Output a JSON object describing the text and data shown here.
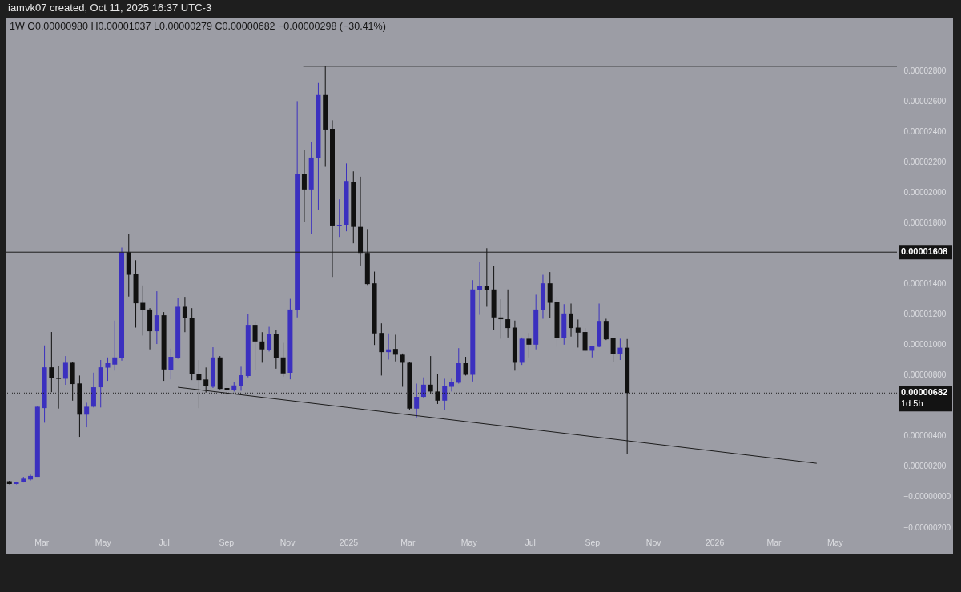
{
  "chart_data": {
    "type": "candlestick",
    "title": "iamvk07 created, Oct 11, 2025 16:37 UTC-3",
    "subtitle": "1W  O0.00000980  H0.00001037  L0.00000279  C0.00000682  −0.00000298 (−30.41%)",
    "x": [
      "2024-01-29",
      "2024-02-05",
      "2024-02-12",
      "2024-02-19",
      "2024-02-26",
      "2024-03-04",
      "2024-03-11",
      "2024-03-18",
      "2024-03-25",
      "2024-04-01",
      "2024-04-08",
      "2024-04-15",
      "2024-04-22",
      "2024-04-29",
      "2024-05-06",
      "2024-05-13",
      "2024-05-20",
      "2024-05-27",
      "2024-06-03",
      "2024-06-10",
      "2024-06-17",
      "2024-06-24",
      "2024-07-01",
      "2024-07-08",
      "2024-07-15",
      "2024-07-22",
      "2024-07-29",
      "2024-08-05",
      "2024-08-12",
      "2024-08-19",
      "2024-08-26",
      "2024-09-02",
      "2024-09-09",
      "2024-09-16",
      "2024-09-23",
      "2024-09-30",
      "2024-10-07",
      "2024-10-14",
      "2024-10-21",
      "2024-10-28",
      "2024-11-04",
      "2024-11-11",
      "2024-11-18",
      "2024-11-25",
      "2024-12-02",
      "2024-12-09",
      "2024-12-16",
      "2024-12-23",
      "2024-12-30",
      "2025-01-06",
      "2025-01-13",
      "2025-01-20",
      "2025-01-27",
      "2025-02-03",
      "2025-02-10",
      "2025-02-17",
      "2025-02-24",
      "2025-03-03",
      "2025-03-10",
      "2025-03-17",
      "2025-03-24",
      "2025-03-31",
      "2025-04-07",
      "2025-04-14",
      "2025-04-21",
      "2025-04-28",
      "2025-05-05",
      "2025-05-12",
      "2025-05-19",
      "2025-05-26",
      "2025-06-02",
      "2025-06-09",
      "2025-06-16",
      "2025-06-23",
      "2025-06-30",
      "2025-07-07",
      "2025-07-14",
      "2025-07-21",
      "2025-07-28",
      "2025-08-04",
      "2025-08-11",
      "2025-08-18",
      "2025-08-25",
      "2025-09-01",
      "2025-09-08",
      "2025-09-15",
      "2025-09-22",
      "2025-09-29",
      "2025-10-06"
    ],
    "ohlc": [
      [
        1.02e-06,
        1.05e-06,
        8.2e-07,
        8.4e-07
      ],
      [
        8.4e-07,
        1e-06,
        8.2e-07,
        9.8e-07
      ],
      [
        9.6e-07,
        1.31e-06,
        9.4e-07,
        1.19e-06
      ],
      [
        1.14e-06,
        1.45e-06,
        1.07e-06,
        1.37e-06
      ],
      [
        1.31e-06,
        5.96e-06,
        1.31e-06,
        5.92e-06
      ],
      [
        5.83e-06,
        9.95e-06,
        4.87e-06,
        8.51e-06
      ],
      [
        8.51e-06,
        1.083e-05,
        6.88e-06,
        7.8e-06
      ],
      [
        7.8e-06,
        8.6e-06,
        5.8e-06,
        7.75e-06
      ],
      [
        7.76e-06,
        9.25e-06,
        7.36e-06,
        8.81e-06
      ],
      [
        8.81e-06,
        8.85e-06,
        6.32e-06,
        7.41e-06
      ],
      [
        7.45e-06,
        7.97e-06,
        3.94e-06,
        5.4e-06
      ],
      [
        5.4e-06,
        6.18e-06,
        4.57e-06,
        5.92e-06
      ],
      [
        5.92e-06,
        8.16e-06,
        5.87e-06,
        7.2e-06
      ],
      [
        7.2e-06,
        8.99e-06,
        5.87e-06,
        8.51e-06
      ],
      [
        8.49e-06,
        9.16e-06,
        7.62e-06,
        8.78e-06
      ],
      [
        8.69e-06,
        1.158e-05,
        8.29e-06,
        9.16e-06
      ],
      [
        9.11e-06,
        1.638e-05,
        8.95e-06,
        1.608e-05
      ],
      [
        1.608e-05,
        1.725e-05,
        1.316e-05,
        1.459e-05
      ],
      [
        1.463e-05,
        1.555e-05,
        1.112e-05,
        1.272e-05
      ],
      [
        1.275e-05,
        1.389e-05,
        1.06e-05,
        1.228e-05
      ],
      [
        1.231e-05,
        1.24e-05,
        9.69e-06,
        1.088e-05
      ],
      [
        1.088e-05,
        1.351e-05,
        1.004e-05,
        1.193e-05
      ],
      [
        1.193e-05,
        1.214e-05,
        7.62e-06,
        8.37e-06
      ],
      [
        8.32e-06,
        9.74e-06,
        7.72e-06,
        9.2e-06
      ],
      [
        9.13e-06,
        1.305e-05,
        9.07e-06,
        1.249e-05
      ],
      [
        1.249e-05,
        1.314e-05,
        1.082e-05,
        1.174e-05
      ],
      [
        1.175e-05,
        1.24e-05,
        7.67e-06,
        8.06e-06
      ],
      [
        8.07e-06,
        8.99e-06,
        5.83e-06,
        7.67e-06
      ],
      [
        7.71e-06,
        8.5e-06,
        6.85e-06,
        7.27e-06
      ],
      [
        7.23e-06,
        9.83e-06,
        7.15e-06,
        9.16e-06
      ],
      [
        9.16e-06,
        9.25e-06,
        7.06e-06,
        7.09e-06
      ],
      [
        7.15e-06,
        7.76e-06,
        6.36e-06,
        7.02e-06
      ],
      [
        7.02e-06,
        7.55e-06,
        6.92e-06,
        7.32e-06
      ],
      [
        7.29e-06,
        8.55e-06,
        6.97e-06,
        7.99e-06
      ],
      [
        7.94e-06,
        1.2e-05,
        7.85e-06,
        1.13e-05
      ],
      [
        1.13e-05,
        1.153e-05,
        8.32e-06,
        1.021e-05
      ],
      [
        1.021e-05,
        1.082e-05,
        8.81e-06,
        9.69e-06
      ],
      [
        9.65e-06,
        1.117e-05,
        9.55e-06,
        1.07e-05
      ],
      [
        1.07e-05,
        1.095e-05,
        8.42e-06,
        9.11e-06
      ],
      [
        9.16e-06,
        1.012e-05,
        7.9e-06,
        8.11e-06
      ],
      [
        8.15e-06,
        1.301e-05,
        7.72e-06,
        1.231e-05
      ],
      [
        1.231e-05,
        2.601e-05,
        1.179e-05,
        2.121e-05
      ],
      [
        2.121e-05,
        2.279e-05,
        1.806e-05,
        2.02e-05
      ],
      [
        2.02e-05,
        2.335e-05,
        1.73e-05,
        2.23e-05
      ],
      [
        2.227e-05,
        2.72e-05,
        1.888e-05,
        2.641e-05
      ],
      [
        2.641e-05,
        2.83e-05,
        2.169e-05,
        2.414e-05
      ],
      [
        2.419e-05,
        2.475e-05,
        1.445e-05,
        1.783e-05
      ],
      [
        1.783e-05,
        1.955e-05,
        1.708e-05,
        1.788e-05
      ],
      [
        1.788e-05,
        2.191e-05,
        1.745e-05,
        2.076e-05
      ],
      [
        2.069e-05,
        2.139e-05,
        1.666e-05,
        1.774e-05
      ],
      [
        1.774e-05,
        2.104e-05,
        1.52e-05,
        1.603e-05
      ],
      [
        1.603e-05,
        1.76e-05,
        1.392e-05,
        1.398e-05
      ],
      [
        1.403e-05,
        1.48e-05,
        9.98e-06,
        1.074e-05
      ],
      [
        1.077e-05,
        1.14e-05,
        7.97e-06,
        9.51e-06
      ],
      [
        9.51e-06,
        1.074e-05,
        9.02e-06,
        9.69e-06
      ],
      [
        9.72e-06,
        1.065e-05,
        8.9e-06,
        9.34e-06
      ],
      [
        9.34e-06,
        9.42e-06,
        7.23e-06,
        8.81e-06
      ],
      [
        8.81e-06,
        8.85e-06,
        5.69e-06,
        5.8e-06
      ],
      [
        5.8e-06,
        7.44e-06,
        5.22e-06,
        6.57e-06
      ],
      [
        6.57e-06,
        7.85e-06,
        6.5e-06,
        7.37e-06
      ],
      [
        7.37e-06,
        9.25e-06,
        6.8e-06,
        6.92e-06
      ],
      [
        6.92e-06,
        8.08e-06,
        6.1e-06,
        6.32e-06
      ],
      [
        6.32e-06,
        7.76e-06,
        5.69e-06,
        7.27e-06
      ],
      [
        7.23e-06,
        7.76e-06,
        6.92e-06,
        7.55e-06
      ],
      [
        7.5e-06,
        9.77e-06,
        7.44e-06,
        8.78e-06
      ],
      [
        8.78e-06,
        9.2e-06,
        7.97e-06,
        8.02e-06
      ],
      [
        8.02e-06,
        1.424e-05,
        7.58e-06,
        1.363e-05
      ],
      [
        1.358e-05,
        1.543e-05,
        1.196e-05,
        1.386e-05
      ],
      [
        1.386e-05,
        1.634e-05,
        1.249e-05,
        1.358e-05
      ],
      [
        1.363e-05,
        1.515e-05,
        1.095e-05,
        1.179e-05
      ],
      [
        1.179e-05,
        1.298e-05,
        1.039e-05,
        1.167e-05
      ],
      [
        1.167e-05,
        1.363e-05,
        1.047e-05,
        1.109e-05
      ],
      [
        1.112e-05,
        1.158e-05,
        8.29e-06,
        8.81e-06
      ],
      [
        8.81e-06,
        1.047e-05,
        8.67e-06,
        1.039e-05
      ],
      [
        1.039e-05,
        1.077e-05,
        9.16e-06,
        1e-05
      ],
      [
        1e-05,
        1.328e-05,
        9.69e-06,
        1.231e-05
      ],
      [
        1.228e-05,
        1.459e-05,
        1.17e-05,
        1.403e-05
      ],
      [
        1.403e-05,
        1.477e-05,
        1.174e-05,
        1.275e-05
      ],
      [
        1.279e-05,
        1.315e-05,
        9.86e-06,
        1.042e-05
      ],
      [
        1.042e-05,
        1.266e-05,
        1e-05,
        1.205e-05
      ],
      [
        1.205e-05,
        1.27e-05,
        1.053e-05,
        1.109e-05
      ],
      [
        1.112e-05,
        1.165e-05,
        9.81e-06,
        1.079e-05
      ],
      [
        1.083e-05,
        1.109e-05,
        9.55e-06,
        9.6e-06
      ],
      [
        9.6e-06,
        9.9e-06,
        9.16e-06,
        9.9e-06
      ],
      [
        9.86e-06,
        1.27e-05,
        9.83e-06,
        1.156e-05
      ],
      [
        1.156e-05,
        1.17e-05,
        1.03e-05,
        1.035e-05
      ],
      [
        1.042e-05,
        1.042e-05,
        8.85e-06,
        9.37e-06
      ],
      [
        9.37e-06,
        1.039e-05,
        8.99e-06,
        9.8e-06
      ],
      [
        9.8e-06,
        1.037e-05,
        2.79e-06,
        6.82e-06
      ]
    ],
    "colors": [
      "#111111",
      "#3b30bf",
      "#3b30bf",
      "#3b30bf",
      "#3b30bf",
      "#3b30bf",
      "#111111",
      "#111111",
      "#3b30bf",
      "#111111",
      "#111111",
      "#3b30bf",
      "#3b30bf",
      "#3b30bf",
      "#3b30bf",
      "#3b30bf",
      "#3b30bf",
      "#111111",
      "#111111",
      "#111111",
      "#111111",
      "#3b30bf",
      "#111111",
      "#3b30bf",
      "#3b30bf",
      "#111111",
      "#111111",
      "#111111",
      "#111111",
      "#3b30bf",
      "#111111",
      "#111111",
      "#3b30bf",
      "#3b30bf",
      "#3b30bf",
      "#111111",
      "#111111",
      "#3b30bf",
      "#111111",
      "#111111",
      "#3b30bf",
      "#3b30bf",
      "#111111",
      "#3b30bf",
      "#3b30bf",
      "#111111",
      "#111111",
      "#3b30bf",
      "#3b30bf",
      "#111111",
      "#111111",
      "#111111",
      "#111111",
      "#111111",
      "#3b30bf",
      "#111111",
      "#111111",
      "#111111",
      "#3b30bf",
      "#3b30bf",
      "#111111",
      "#111111",
      "#3b30bf",
      "#3b30bf",
      "#3b30bf",
      "#111111",
      "#3b30bf",
      "#3b30bf",
      "#111111",
      "#111111",
      "#111111",
      "#111111",
      "#111111",
      "#3b30bf",
      "#111111",
      "#3b30bf",
      "#3b30bf",
      "#111111",
      "#111111",
      "#3b30bf",
      "#111111",
      "#111111",
      "#111111",
      "#3b30bf",
      "#3b30bf",
      "#111111",
      "#111111",
      "#3b30bf",
      "#111111"
    ],
    "series": [
      {
        "type": "line",
        "x": [
          "2024-07-15",
          "2026-04-13"
        ],
        "values": [
          7.2e-06,
          2.2e-06
        ],
        "color": "#1c1c1c"
      },
      {
        "type": "line",
        "x": [
          "2024-11-17",
          "2026-07-02"
        ],
        "values": [
          2.83e-05,
          2.83e-05
        ],
        "color": "#1c1c1c"
      }
    ],
    "ref_lines": [
      {
        "axis": "y",
        "value": 1.608e-05,
        "label": "0.00001608",
        "color": "#1c1c1c"
      },
      {
        "axis": "y",
        "value": 6.82e-06,
        "label": "0.00000682",
        "color": "#1c1c1c",
        "line_style": "dotted"
      }
    ],
    "annotations": [
      "1d 5h"
    ],
    "xlim": [
      "2024-01-26",
      "2026-07-02"
    ],
    "xticks": [
      {
        "value": "2024-03-01",
        "label": "Mar"
      },
      {
        "value": "2024-05-01",
        "label": "May"
      },
      {
        "value": "2024-07-01",
        "label": "Jul"
      },
      {
        "value": "2024-09-01",
        "label": "Sep"
      },
      {
        "value": "2024-11-01",
        "label": "Nov"
      },
      {
        "value": "2025-01-01",
        "label": "2025"
      },
      {
        "value": "2025-03-01",
        "label": "Mar"
      },
      {
        "value": "2025-05-01",
        "label": "May"
      },
      {
        "value": "2025-07-01",
        "label": "Jul"
      },
      {
        "value": "2025-09-01",
        "label": "Sep"
      },
      {
        "value": "2025-11-01",
        "label": "Nov"
      },
      {
        "value": "2026-01-01",
        "label": "2026"
      },
      {
        "value": "2026-03-01",
        "label": "Mar"
      },
      {
        "value": "2026-05-01",
        "label": "May"
      }
    ],
    "ylim": [
      -2e-06,
      3.15e-05
    ],
    "yticks": [
      {
        "value": -2e-06,
        "label": "−0.00000200"
      },
      {
        "value": 0,
        "label": "−0.00000000"
      },
      {
        "value": 2e-06,
        "label": "0.00000200"
      },
      {
        "value": 4e-06,
        "label": "0.00000400"
      },
      {
        "value": 8e-06,
        "label": "0.00000800"
      },
      {
        "value": 1e-05,
        "label": "0.00001000"
      },
      {
        "value": 1.2e-05,
        "label": "0.00001200"
      },
      {
        "value": 1.4e-05,
        "label": "0.00001400"
      },
      {
        "value": 1.8e-05,
        "label": "0.00001800"
      },
      {
        "value": 2e-05,
        "label": "0.00002000"
      },
      {
        "value": 2.2e-05,
        "label": "0.00002200"
      },
      {
        "value": 2.4e-05,
        "label": "0.00002400"
      },
      {
        "value": 2.6e-05,
        "label": "0.00002600"
      },
      {
        "value": 2.8e-05,
        "label": "0.00002800"
      }
    ]
  }
}
